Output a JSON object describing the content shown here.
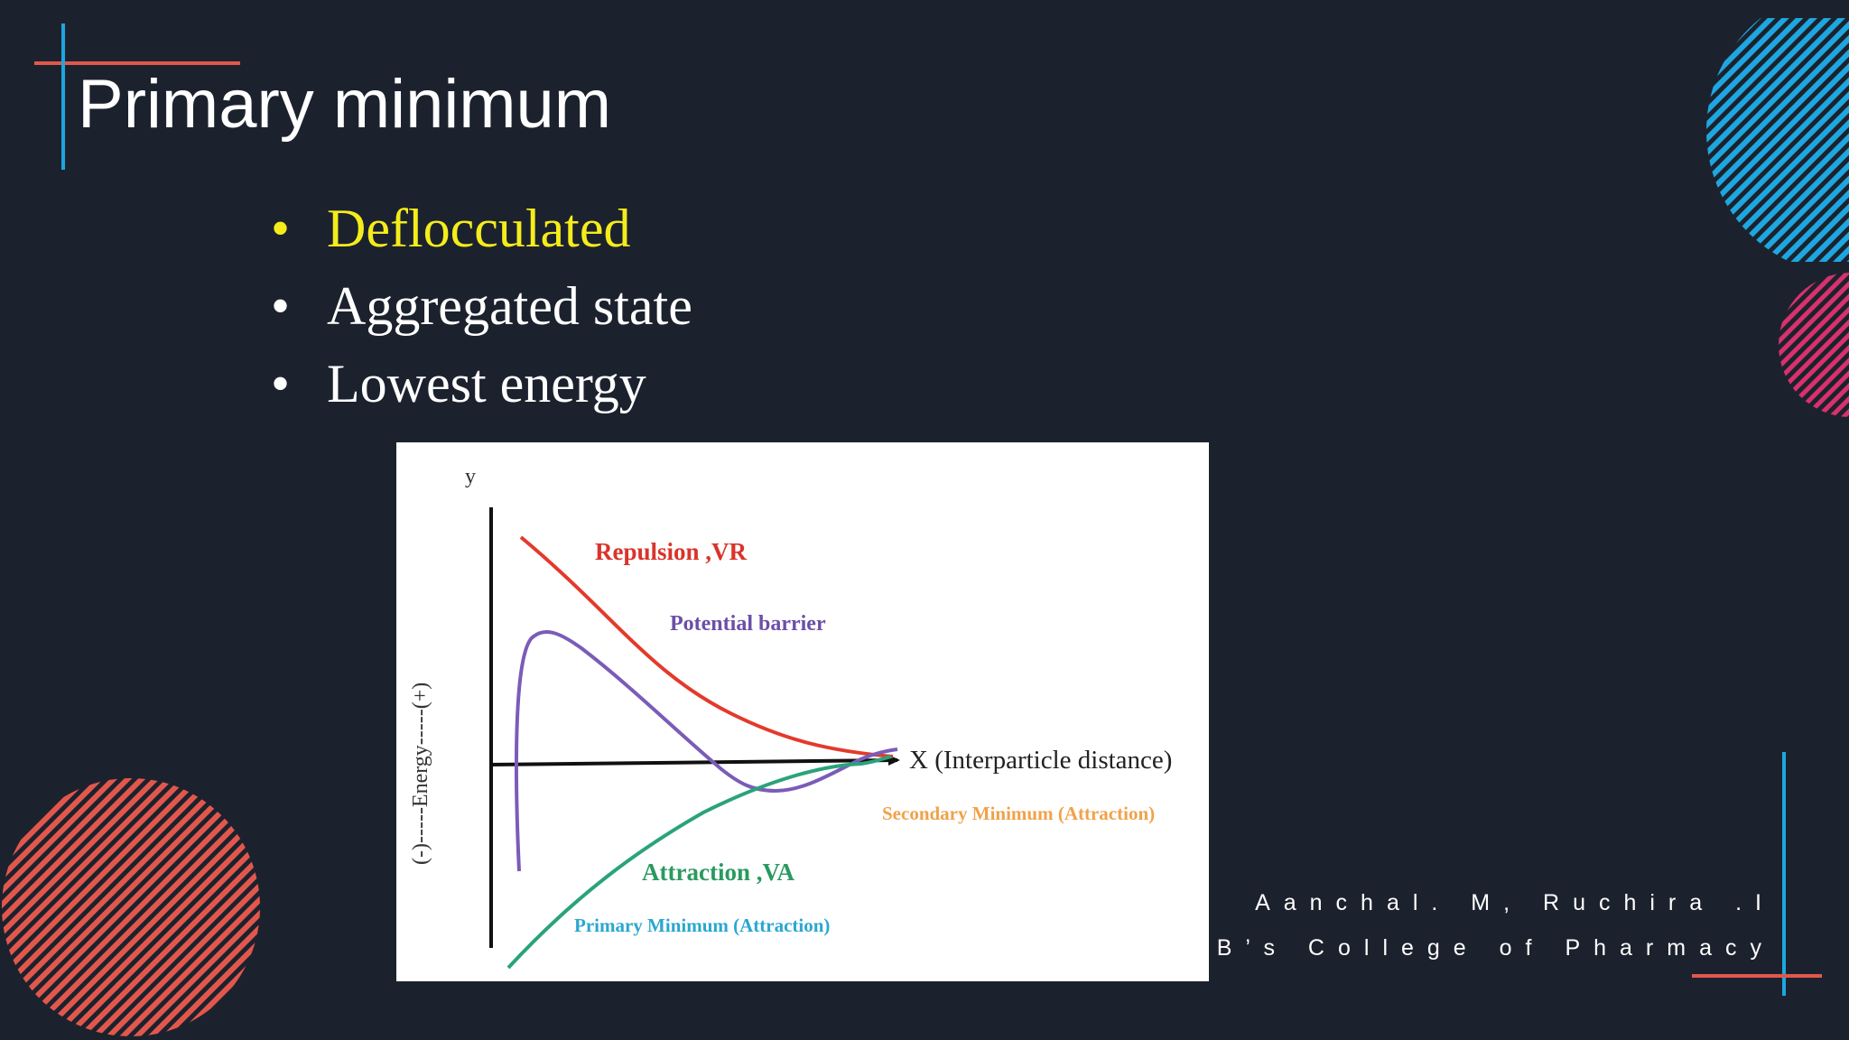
{
  "slide": {
    "title": "Primary minimum",
    "bullets": [
      {
        "text": "Deflocculated",
        "highlight": true
      },
      {
        "text": "Aggregated state",
        "highlight": false
      },
      {
        "text": "Lowest energy",
        "highlight": false
      }
    ],
    "footer": {
      "authors": "Aanchal. M, Ruchira .I",
      "college": "SVB’s College of Pharmacy"
    }
  },
  "diagram": {
    "y_axis_letter": "y",
    "y_axis_label": "(-)-----Energy-----(+)",
    "x_axis_label": "X (Interparticle distance)",
    "repulsion_label": "Repulsion ,VR",
    "potential_barrier_label": "Potential barrier",
    "secondary_minimum_label": "Secondary Minimum (Attraction)",
    "attraction_label": "Attraction ,VA",
    "primary_minimum_label": "Primary Minimum (Attraction)"
  },
  "colors": {
    "background": "#1c222d",
    "title": "#ffffff",
    "highlight": "#f5ec1c",
    "accent_red": "#e2574c",
    "accent_blue": "#1ea6e0",
    "accent_pink": "#d8316e",
    "repulsion": "#e33a2c",
    "barrier": "#7a5cb8",
    "attraction": "#2aa37a",
    "primary_min": "#2aa7d0",
    "secondary_min": "#f0a24a"
  }
}
